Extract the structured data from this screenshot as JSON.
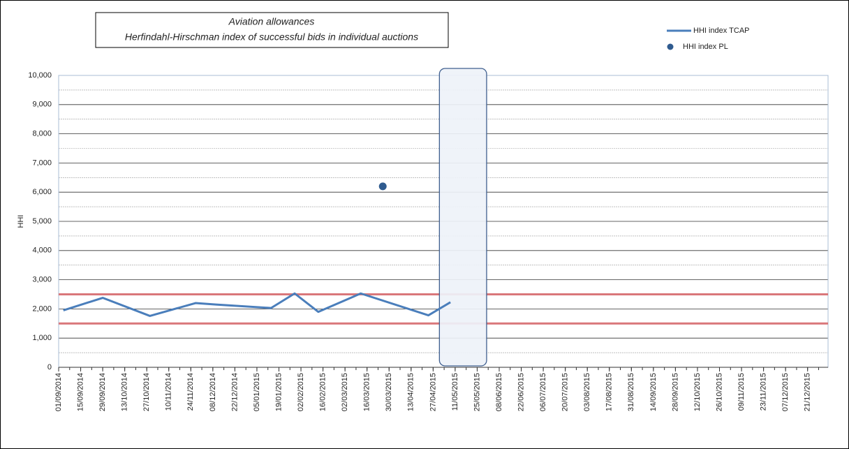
{
  "chart_data": {
    "type": "line",
    "title": "Aviation allowances",
    "subtitle": "Herfindahl-Hirschman index of successful bids in individual auctions",
    "y_label": "HHI",
    "xlim": [
      "01/09/2014",
      "03/01/2016"
    ],
    "xticks": [
      "01/09/2014",
      "15/09/2014",
      "29/09/2014",
      "13/10/2014",
      "27/10/2014",
      "10/11/2014",
      "24/11/2014",
      "08/12/2014",
      "22/12/2014",
      "05/01/2015",
      "19/01/2015",
      "02/02/2015",
      "16/02/2015",
      "02/03/2015",
      "16/03/2015",
      "30/03/2015",
      "13/04/2015",
      "27/04/2015",
      "11/05/2015",
      "25/05/2015",
      "08/06/2015",
      "22/06/2015",
      "06/07/2015",
      "20/07/2015",
      "03/08/2015",
      "17/08/2015",
      "31/08/2015",
      "14/09/2015",
      "28/09/2015",
      "12/10/2015",
      "26/10/2015",
      "09/11/2015",
      "23/11/2015",
      "07/12/2015",
      "21/12/2015"
    ],
    "ylim": [
      0,
      10000
    ],
    "yticks": [
      {
        "value": 0,
        "label": "0"
      },
      {
        "value": 1000,
        "label": "1,000"
      },
      {
        "value": 2000,
        "label": "2,000"
      },
      {
        "value": 3000,
        "label": "3,000"
      },
      {
        "value": 4000,
        "label": "4,000"
      },
      {
        "value": 5000,
        "label": "5,000"
      },
      {
        "value": 6000,
        "label": "6,000"
      },
      {
        "value": 7000,
        "label": "7,000"
      },
      {
        "value": 8000,
        "label": "8,000"
      },
      {
        "value": 9000,
        "label": "9,000"
      },
      {
        "value": 10000,
        "label": "10,000"
      }
    ],
    "grid": true,
    "reference_lines": {
      "values": [
        2500,
        1500
      ],
      "color": "#d9777a"
    },
    "highlight_x": [
      "01/05/2015",
      "31/05/2015"
    ],
    "series": [
      {
        "name": "HHI index TCAP",
        "style": "line",
        "color": "#4a7ebb",
        "x": [
          "04/09/2014",
          "29/09/2014",
          "29/10/2014",
          "27/11/2014",
          "10/12/2014",
          "14/01/2015",
          "29/01/2015",
          "13/02/2015",
          "12/03/2015",
          "24/04/2015",
          "08/05/2015"
        ],
        "values": [
          1950,
          2380,
          1760,
          2200,
          2150,
          2030,
          2530,
          1900,
          2530,
          1780,
          2230
        ]
      },
      {
        "name": "HHI index PL",
        "style": "scatter",
        "color": "#2f5b8f",
        "x": [
          "26/03/2015"
        ],
        "values": [
          6200
        ]
      }
    ]
  }
}
